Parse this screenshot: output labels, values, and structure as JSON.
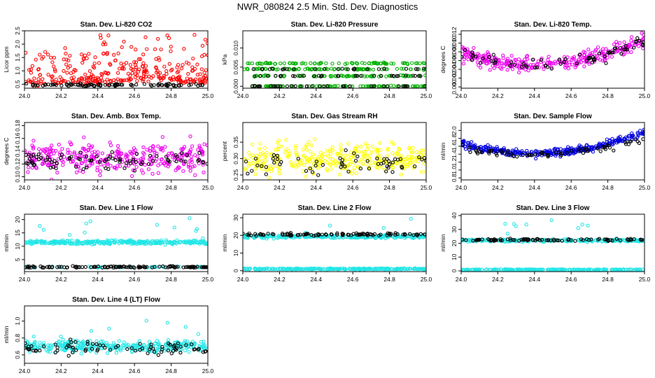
{
  "page": {
    "title": "NWR_080824  2.5 Min. Std. Dev. Diagnostics"
  },
  "chart_data": [
    {
      "type": "scatter",
      "title": "Stan. Dev. Li-820 CO2",
      "ylabel": "Licor ppm",
      "xlim": [
        24.0,
        25.0
      ],
      "ylim": [
        0.35,
        2.5
      ],
      "yticks": [
        0.5,
        1.0,
        1.5,
        2.0,
        2.5
      ],
      "xticks": [
        24.0,
        24.2,
        24.4,
        24.6,
        24.8,
        25.0
      ],
      "series": [
        {
          "color": "#ff0000",
          "gen": {
            "seed": 11,
            "n": 320,
            "base": 0.58,
            "spread": 0.12,
            "spikes": 0.75,
            "spikeMax": 1.9,
            "shape": "bump"
          }
        },
        {
          "color": "#000000",
          "gen": {
            "seed": 12,
            "n": 90,
            "base": 0.47,
            "spread": 0.04
          }
        }
      ]
    },
    {
      "type": "scatter",
      "title": "Stan. Dev. Li-820 Pressure",
      "ylabel": "kPa",
      "xlim": [
        24.0,
        25.0
      ],
      "ylim": [
        -0.0005,
        0.0145
      ],
      "yticks": [
        0.0,
        0.005,
        0.01
      ],
      "xticks": [
        24.0,
        24.2,
        24.4,
        24.6,
        24.8,
        25.0
      ],
      "series": [
        {
          "color": "#00b000",
          "gen": {
            "seed": 21,
            "n": 320,
            "levels": [
              0.0,
              0.0027,
              0.0045,
              0.006
            ],
            "spread": 0.0003
          }
        },
        {
          "color": "#000000",
          "gen": {
            "seed": 22,
            "n": 90,
            "levels": [
              0.0,
              0.0,
              0.0027,
              0.0045
            ],
            "spread": 0.0002
          }
        }
      ]
    },
    {
      "type": "scatter",
      "title": "Stan. Dev. Li-820 Temp.",
      "ylabel": "degrees C",
      "xlim": [
        24.0,
        25.0
      ],
      "ylim": [
        -0.0003,
        0.0128
      ],
      "yticks": [
        0.0,
        0.002,
        0.004,
        0.006,
        0.008,
        0.01,
        0.012
      ],
      "xticks": [
        24.0,
        24.2,
        24.4,
        24.6,
        24.8,
        25.0
      ],
      "series": [
        {
          "color": "#ee00ee",
          "gen": {
            "seed": 31,
            "n": 300,
            "base": 0.006,
            "spread": 0.0015,
            "shape": "valley",
            "amp": 0.006
          }
        },
        {
          "color": "#000000",
          "gen": {
            "seed": 32,
            "n": 70,
            "base": 0.006,
            "spread": 0.0012,
            "shape": "valley",
            "amp": 0.005
          }
        }
      ]
    },
    {
      "type": "scatter",
      "title": "Stan. Dev. Amb. Box Temp.",
      "ylabel": "degrees C",
      "xlim": [
        24.0,
        25.0
      ],
      "ylim": [
        0.095,
        0.185
      ],
      "yticks": [
        0.1,
        0.12,
        0.14,
        0.16,
        0.18
      ],
      "xticks": [
        24.0,
        24.2,
        24.4,
        24.6,
        24.8,
        25.0
      ],
      "series": [
        {
          "color": "#ee00ee",
          "gen": {
            "seed": 41,
            "n": 330,
            "base": 0.13,
            "spread": 0.02
          }
        },
        {
          "color": "#000000",
          "gen": {
            "seed": 42,
            "n": 85,
            "base": 0.125,
            "spread": 0.012
          }
        }
      ]
    },
    {
      "type": "scatter",
      "title": "Stan. Dev. Gas Stream RH",
      "ylabel": "percent",
      "xlim": [
        24.0,
        25.0
      ],
      "ylim": [
        0.235,
        0.41
      ],
      "yticks": [
        0.25,
        0.3,
        0.35
      ],
      "xticks": [
        24.0,
        24.2,
        24.4,
        24.6,
        24.8,
        25.0
      ],
      "series": [
        {
          "color": "#ffff00",
          "gen": {
            "seed": 51,
            "n": 330,
            "base": 0.3,
            "spread": 0.04
          }
        },
        {
          "color": "#000000",
          "gen": {
            "seed": 52,
            "n": 60,
            "base": 0.29,
            "spread": 0.03
          }
        }
      ]
    },
    {
      "type": "scatter",
      "title": "Stan. Dev. Sample Flow",
      "ylabel": "ml/min",
      "xlim": [
        24.0,
        25.0
      ],
      "ylim": [
        0.75,
        2.2
      ],
      "yticks": [
        0.8,
        1.0,
        1.2,
        1.4,
        1.6,
        1.8,
        2.0
      ],
      "xticks": [
        24.0,
        24.2,
        24.4,
        24.6,
        24.8,
        25.0
      ],
      "series": [
        {
          "color": "#0000dd",
          "gen": {
            "seed": 61,
            "n": 320,
            "base": 1.5,
            "spread": 0.08,
            "shape": "valley",
            "amp": 0.55
          }
        },
        {
          "color": "#000000",
          "gen": {
            "seed": 62,
            "n": 70,
            "base": 1.45,
            "spread": 0.07,
            "shape": "valley",
            "amp": 0.4
          }
        }
      ]
    },
    {
      "type": "scatter",
      "title": "Stan. Dev. Line 1 Flow",
      "ylabel": "ml/min",
      "xlim": [
        24.0,
        25.0
      ],
      "ylim": [
        0.5,
        22
      ],
      "yticks": [
        5,
        10,
        15,
        20
      ],
      "xticks": [
        24.0,
        24.2,
        24.4,
        24.6,
        24.8,
        25.0
      ],
      "series": [
        {
          "color": "#22e6e6",
          "gen": {
            "seed": 71,
            "n": 320,
            "base": 11.5,
            "spread": 0.6,
            "spikes": 0.04,
            "spikeMax": 9
          }
        },
        {
          "color": "#22e6e6",
          "gen": {
            "seed": 73,
            "n": 40,
            "base": 2.2,
            "spread": 0.2
          }
        },
        {
          "color": "#000000",
          "gen": {
            "seed": 72,
            "n": 120,
            "base": 2.2,
            "spread": 0.25
          }
        }
      ]
    },
    {
      "type": "scatter",
      "title": "Stan. Dev. Line 2 Flow",
      "ylabel": "ml/min",
      "xlim": [
        24.0,
        25.0
      ],
      "ylim": [
        -0.5,
        32
      ],
      "yticks": [
        0,
        10,
        20,
        30
      ],
      "xticks": [
        24.0,
        24.2,
        24.4,
        24.6,
        24.8,
        25.0
      ],
      "series": [
        {
          "color": "#22e6e6",
          "gen": {
            "seed": 81,
            "n": 260,
            "base": 19.3,
            "spread": 0.7,
            "spikes": 0.03,
            "spikeMax": 10
          }
        },
        {
          "color": "#22e6e6",
          "gen": {
            "seed": 83,
            "n": 240,
            "base": 1.0,
            "spread": 0.3
          }
        },
        {
          "color": "#000000",
          "gen": {
            "seed": 82,
            "n": 100,
            "base": 20.5,
            "spread": 0.6
          }
        }
      ]
    },
    {
      "type": "scatter",
      "title": "Stan. Dev. Line 3 Flow",
      "ylabel": "ml/min",
      "xlim": [
        24.0,
        25.0
      ],
      "ylim": [
        -0.5,
        41
      ],
      "yticks": [
        0,
        10,
        20,
        30,
        40
      ],
      "xticks": [
        24.0,
        24.2,
        24.4,
        24.6,
        24.8,
        25.0
      ],
      "series": [
        {
          "color": "#22e6e6",
          "gen": {
            "seed": 91,
            "n": 240,
            "base": 22.0,
            "spread": 0.7,
            "spikes": 0.03,
            "spikeMax": 15
          }
        },
        {
          "color": "#22e6e6",
          "gen": {
            "seed": 93,
            "n": 240,
            "base": 0.9,
            "spread": 0.3
          }
        },
        {
          "color": "#000000",
          "gen": {
            "seed": 92,
            "n": 90,
            "base": 22.5,
            "spread": 0.7
          }
        }
      ]
    },
    {
      "type": "scatter",
      "title": "Stan. Dev. Line 4 (LT) Flow",
      "ylabel": "ml/min",
      "xlim": [
        24.0,
        25.0
      ],
      "ylim": [
        0.5,
        1.18
      ],
      "yticks": [
        0.6,
        0.8,
        1.0
      ],
      "xticks": [
        24.0,
        24.2,
        24.4,
        24.6,
        24.8,
        25.0
      ],
      "series": [
        {
          "color": "#22e6e6",
          "gen": {
            "seed": 101,
            "n": 320,
            "base": 0.7,
            "spread": 0.06,
            "spikes": 0.02,
            "spikeMax": 0.35
          }
        },
        {
          "color": "#000000",
          "gen": {
            "seed": 102,
            "n": 80,
            "base": 0.68,
            "spread": 0.06
          }
        }
      ]
    }
  ]
}
